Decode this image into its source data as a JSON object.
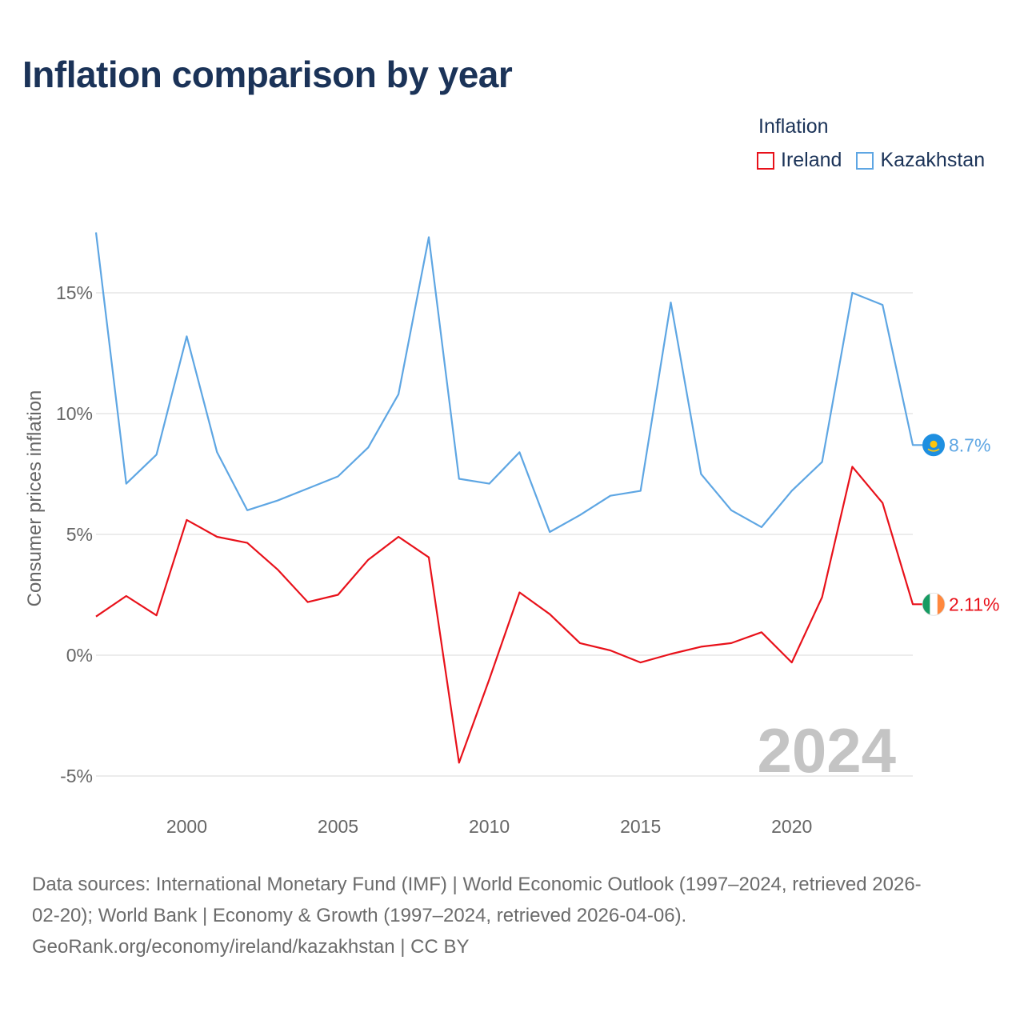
{
  "title": "Inflation comparison by year",
  "legend": {
    "title": "Inflation",
    "items": [
      {
        "label": "Ireland",
        "color": "#e8111a"
      },
      {
        "label": "Kazakhstan",
        "color": "#5ea6e3"
      }
    ]
  },
  "footer": {
    "line1": "Data sources: International Monetary Fund (IMF) | World Economic Outlook (1997–2024, retrieved 2026-",
    "line2": "02-20); World Bank | Economy & Growth (1997–2024, retrieved 2026-04-06).",
    "line3": "GeoRank.org/economy/ireland/kazakhstan | CC BY"
  },
  "chart_data": {
    "type": "line",
    "ylabel": "Consumer prices inflation",
    "xlabel": "",
    "year_label": "2024",
    "x": [
      1997,
      1998,
      1999,
      2000,
      2001,
      2002,
      2003,
      2004,
      2005,
      2006,
      2007,
      2008,
      2009,
      2010,
      2011,
      2012,
      2013,
      2014,
      2015,
      2016,
      2017,
      2018,
      2019,
      2020,
      2021,
      2022,
      2023,
      2024
    ],
    "xlim": [
      1997,
      2024
    ],
    "ylim": [
      -5,
      17.5
    ],
    "yticks": [
      -5,
      0,
      5,
      10,
      15
    ],
    "ytick_labels": [
      "-5%",
      "0%",
      "5%",
      "10%",
      "15%"
    ],
    "xticks": [
      2000,
      2005,
      2010,
      2015,
      2020
    ],
    "xtick_labels": [
      "2000",
      "2005",
      "2010",
      "2015",
      "2020"
    ],
    "series": [
      {
        "name": "Ireland",
        "color": "#e8111a",
        "end_label": "2.11%",
        "flag": "ireland-flag",
        "values": [
          1.6,
          2.45,
          1.65,
          5.6,
          4.9,
          4.65,
          3.55,
          2.2,
          2.5,
          3.95,
          4.9,
          4.05,
          -4.45,
          -1.0,
          2.6,
          1.7,
          0.5,
          0.2,
          -0.3,
          0.05,
          0.35,
          0.5,
          0.95,
          -0.3,
          2.4,
          7.8,
          6.3,
          2.11
        ]
      },
      {
        "name": "Kazakhstan",
        "color": "#5ea6e3",
        "end_label": "8.7%",
        "flag": "kazakhstan-flag",
        "values": [
          17.5,
          7.1,
          8.3,
          13.2,
          8.4,
          6.0,
          6.4,
          6.9,
          7.4,
          8.6,
          10.8,
          17.3,
          7.3,
          7.1,
          8.4,
          5.1,
          5.8,
          6.6,
          6.8,
          14.6,
          7.5,
          6.0,
          5.3,
          6.8,
          8.0,
          15.0,
          14.5,
          8.7
        ]
      }
    ]
  }
}
